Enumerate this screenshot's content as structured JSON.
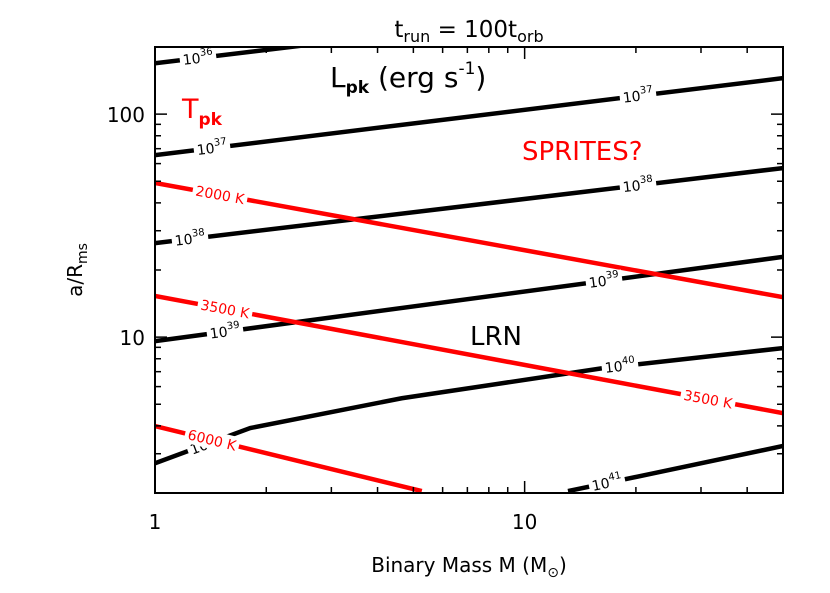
{
  "chart_data": {
    "type": "contour",
    "title": [
      "t",
      "run",
      " = 100t",
      "orb"
    ],
    "xlabel": [
      "Binary Mass M (M",
      "⊙",
      ")"
    ],
    "ylabel": [
      "a/R",
      "ms"
    ],
    "annotations": [
      [
        "L",
        "pk",
        " (erg s",
        "-1",
        ")"
      ],
      [
        "T",
        "pk"
      ],
      [
        "SPRITES?"
      ],
      [
        "LRN"
      ]
    ],
    "xscale": "log",
    "yscale": "log",
    "xlim": [
      1,
      50
    ],
    "ylim": [
      2,
      200
    ],
    "xticks": [
      1,
      10
    ],
    "xticks_minor": [
      2,
      3,
      4,
      5,
      6,
      7,
      8,
      9,
      20,
      30,
      40,
      50
    ],
    "yticks": [
      10,
      100
    ],
    "yticks_minor": [
      2,
      3,
      4,
      5,
      6,
      7,
      8,
      9,
      20,
      30,
      40,
      50,
      60,
      70,
      80,
      90,
      200
    ],
    "series": [
      {
        "name": [
          "10",
          "36"
        ],
        "color": "#000000",
        "x": [
          1,
          2.56
        ],
        "y": [
          169,
          204
        ]
      },
      {
        "name": [
          "10",
          "37"
        ],
        "color": "#000000",
        "x": [
          1,
          50
        ],
        "y": [
          65.5,
          145
        ]
      },
      {
        "name": [
          "10",
          "38"
        ],
        "color": "#000000",
        "x": [
          1,
          50
        ],
        "y": [
          26.4,
          57.3
        ]
      },
      {
        "name": [
          "10",
          "39"
        ],
        "color": "#000000",
        "x": [
          1,
          50
        ],
        "y": [
          9.6,
          22.9
        ]
      },
      {
        "name": [
          "10",
          "40"
        ],
        "color": "#000000",
        "x": [
          1,
          1.81,
          4.65,
          16.3,
          50
        ],
        "y": [
          2.72,
          3.91,
          5.32,
          7.26,
          8.93
        ]
      },
      {
        "name": [
          "10",
          "41"
        ],
        "color": "#000000",
        "x": [
          13.1,
          22.3,
          50
        ],
        "y": [
          2.04,
          2.45,
          3.25
        ]
      },
      {
        "name": "2000 K",
        "color": "#ff0000",
        "x": [
          1,
          50
        ],
        "y": [
          49.1,
          15.1
        ]
      },
      {
        "name": "3500 K",
        "color": "#ff0000",
        "x": [
          1,
          50
        ],
        "y": [
          15.3,
          4.56
        ]
      },
      {
        "name": "6000 K",
        "color": "#ff0000",
        "x": [
          1,
          5.27
        ],
        "y": [
          3.99,
          2.04
        ]
      }
    ]
  }
}
